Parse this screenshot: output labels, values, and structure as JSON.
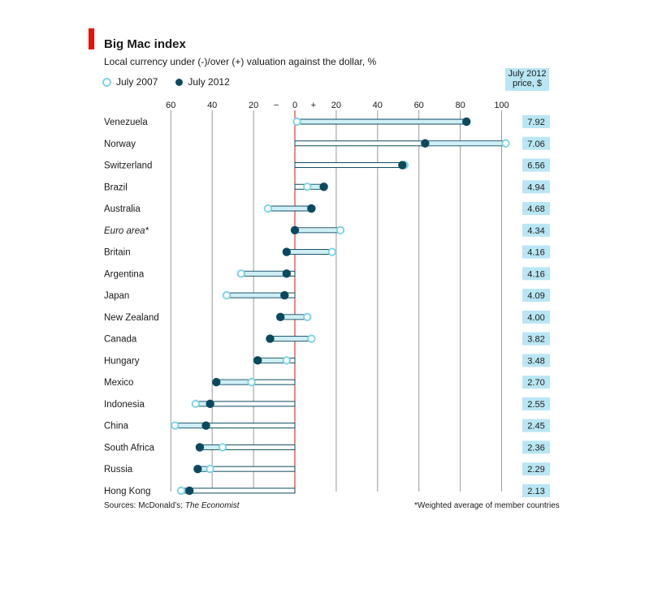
{
  "title": "Big Mac index",
  "subtitle": "Local currency under (-)/over (+) valuation against the dollar, %",
  "legend": {
    "y2007": "July 2007",
    "y2012": "July 2012"
  },
  "price_header": {
    "line1": "July 2012",
    "line2": "price, $"
  },
  "source_prefix": "Sources: McDonald’s; ",
  "source_italic": "The Economist",
  "footnote": "*Weighted average of member countries",
  "colors": {
    "accent_red": "#e3120b",
    "dot_2007": "#7fd4e6",
    "dot_2012": "#0b4a5e",
    "price_bg": "#b9e6f3"
  },
  "chart_data": {
    "type": "scatter",
    "title": "Big Mac index",
    "xlabel": "Local currency under (-)/over (+) valuation against the dollar, %",
    "xlim": [
      -60,
      100
    ],
    "x_ticks": [
      -60,
      -40,
      -20,
      0,
      20,
      40,
      60,
      80,
      100
    ],
    "x_tick_labels": [
      "60",
      "40",
      "20",
      "0",
      "20",
      "40",
      "60",
      "80",
      "100"
    ],
    "sign_labels": [
      "−",
      "+"
    ],
    "grid": true,
    "series": [
      {
        "name": "July 2007",
        "values": [
          1,
          102,
          53,
          6,
          -13,
          22,
          18,
          -26,
          -33,
          6,
          8,
          -4,
          -21,
          -48,
          -58,
          -35,
          -41,
          -55
        ]
      },
      {
        "name": "July 2012",
        "values": [
          83,
          63,
          52,
          14,
          8,
          0,
          -4,
          -4,
          -5,
          -7,
          -12,
          -18,
          -38,
          -41,
          -43,
          -46,
          -47,
          -51
        ]
      }
    ],
    "rows": [
      {
        "country": "Venezuela",
        "price": "7.92",
        "italic": false
      },
      {
        "country": "Norway",
        "price": "7.06",
        "italic": false
      },
      {
        "country": "Switzerland",
        "price": "6.56",
        "italic": false
      },
      {
        "country": "Brazil",
        "price": "4.94",
        "italic": false
      },
      {
        "country": "Australia",
        "price": "4.68",
        "italic": false
      },
      {
        "country": "Euro area*",
        "price": "4.34",
        "italic": true
      },
      {
        "country": "Britain",
        "price": "4.16",
        "italic": false
      },
      {
        "country": "Argentina",
        "price": "4.16",
        "italic": false
      },
      {
        "country": "Japan",
        "price": "4.09",
        "italic": false
      },
      {
        "country": "New Zealand",
        "price": "4.00",
        "italic": false
      },
      {
        "country": "Canada",
        "price": "3.82",
        "italic": false
      },
      {
        "country": "Hungary",
        "price": "3.48",
        "italic": false
      },
      {
        "country": "Mexico",
        "price": "2.70",
        "italic": false
      },
      {
        "country": "Indonesia",
        "price": "2.55",
        "italic": false
      },
      {
        "country": "China",
        "price": "2.45",
        "italic": false
      },
      {
        "country": "South Africa",
        "price": "2.36",
        "italic": false
      },
      {
        "country": "Russia",
        "price": "2.29",
        "italic": false
      },
      {
        "country": "Hong Kong",
        "price": "2.13",
        "italic": false
      }
    ]
  }
}
